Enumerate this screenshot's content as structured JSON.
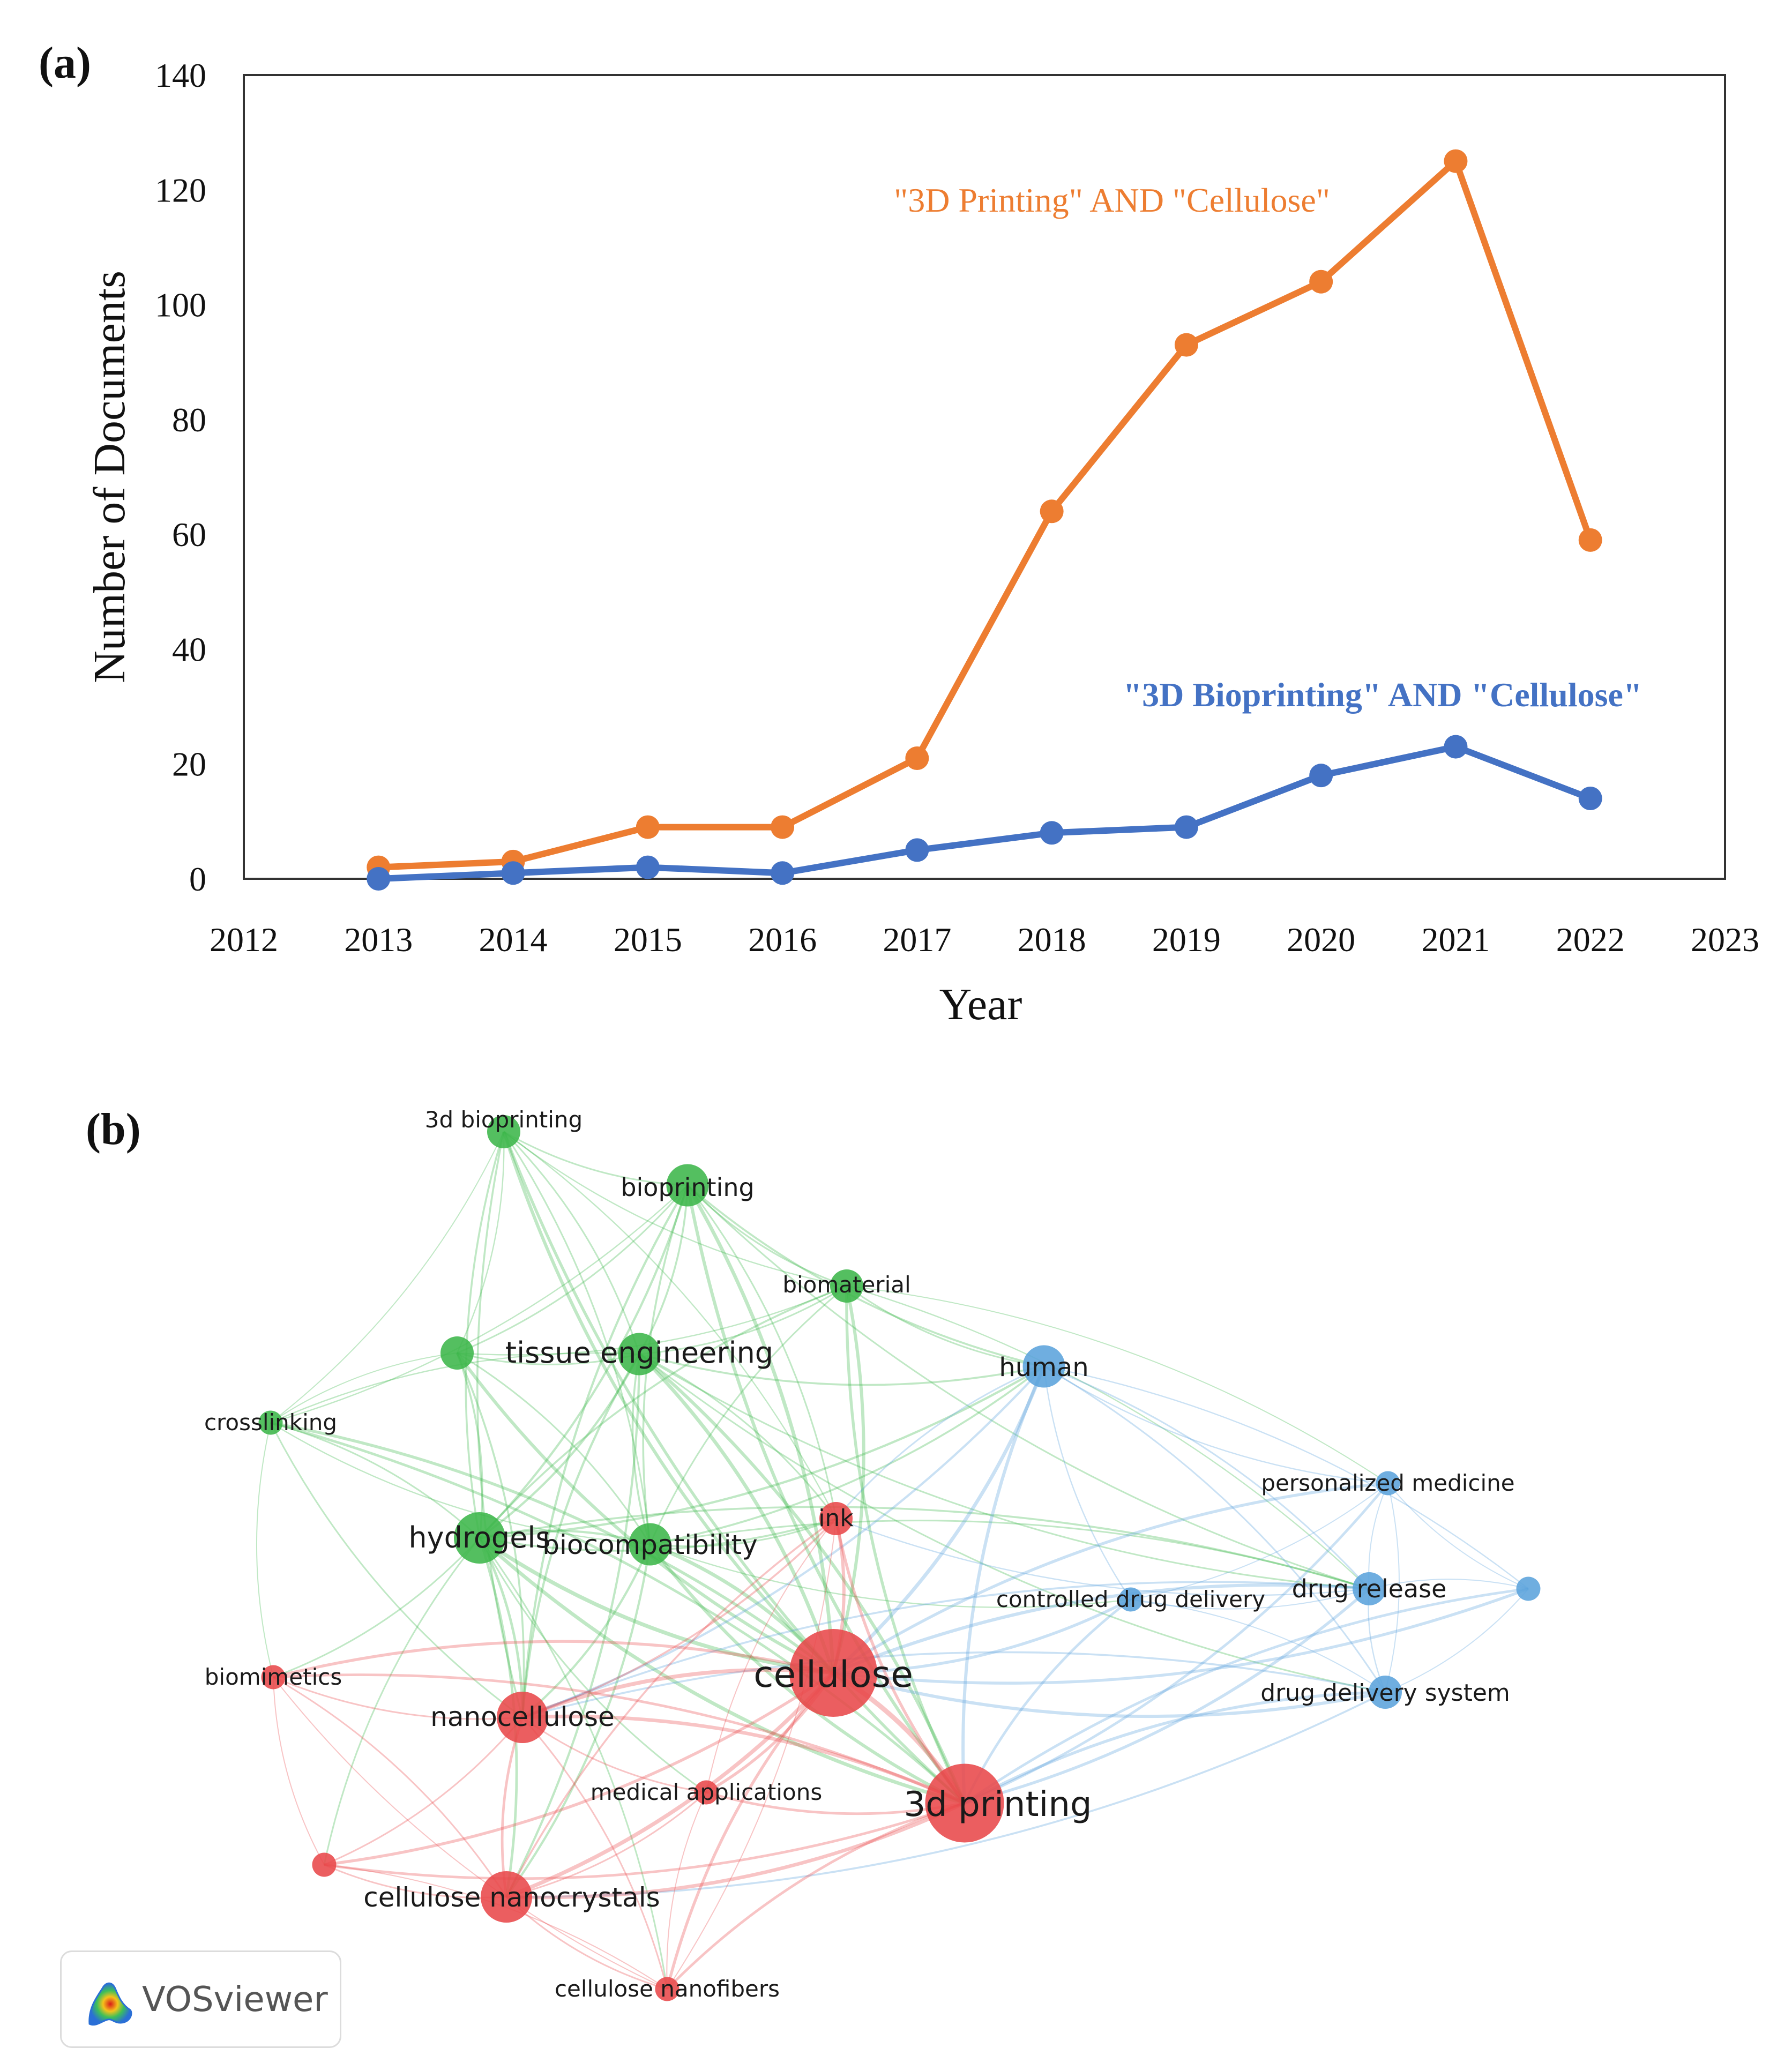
{
  "panel_a_label": "(a)",
  "panel_b_label": "(b)",
  "chart_data": [
    {
      "type": "line",
      "title": "",
      "xlabel": "Year",
      "ylabel": "Number of Documents",
      "xlim": [
        2012,
        2023
      ],
      "ylim": [
        0,
        140
      ],
      "xticks": [
        2012,
        2013,
        2014,
        2015,
        2016,
        2017,
        2018,
        2019,
        2020,
        2021,
        2022,
        2023
      ],
      "yticks": [
        0,
        20,
        40,
        60,
        80,
        100,
        120,
        140
      ],
      "x": [
        2013,
        2014,
        2015,
        2016,
        2017,
        2018,
        2019,
        2020,
        2021,
        2022
      ],
      "series": [
        {
          "name": "\"3D Printing\" AND \"Cellulose\"",
          "color": "#ED7D31",
          "values": [
            2,
            3,
            9,
            9,
            21,
            64,
            93,
            104,
            125,
            59
          ]
        },
        {
          "name": "\"3D Bioprinting\" AND \"Cellulose\"",
          "color": "#4472C4",
          "values": [
            0,
            1,
            2,
            1,
            5,
            8,
            9,
            18,
            23,
            14
          ]
        }
      ],
      "annotations": [
        {
          "text": "\"3D Printing\" AND \"Cellulose\"",
          "series": 0
        },
        {
          "text": "\"3D Bioprinting\" AND \"Cellulose\"",
          "series": 1
        }
      ]
    },
    {
      "type": "network",
      "title": "",
      "clusters": {
        "red": "#E8484A",
        "green": "#3CB64A",
        "blue": "#5BA3DC"
      },
      "nodes": [
        {
          "id": "3d bioprinting",
          "label": "3d bioprinting",
          "cluster": "green",
          "weight": 2
        },
        {
          "id": "bioprinting",
          "label": "bioprinting",
          "cluster": "green",
          "weight": 3
        },
        {
          "id": "biomaterial",
          "label": "biomaterial",
          "cluster": "green",
          "weight": 2
        },
        {
          "id": "green-unlabeled",
          "label": "",
          "cluster": "green",
          "weight": 2
        },
        {
          "id": "tissue engineering",
          "label": "tissue engineering",
          "cluster": "green",
          "weight": 3
        },
        {
          "id": "crosslinking",
          "label": "crosslinking",
          "cluster": "green",
          "weight": 1
        },
        {
          "id": "hydrogels",
          "label": "hydrogels",
          "cluster": "green",
          "weight": 4
        },
        {
          "id": "biocompatibility",
          "label": "biocompatibility",
          "cluster": "green",
          "weight": 3
        },
        {
          "id": "human",
          "label": "human",
          "cluster": "blue",
          "weight": 3
        },
        {
          "id": "personalized medicine",
          "label": "personalized medicine",
          "cluster": "blue",
          "weight": 1
        },
        {
          "id": "controlled drug delivery",
          "label": "controlled drug delivery",
          "cluster": "blue",
          "weight": 1
        },
        {
          "id": "drug release",
          "label": "drug release",
          "cluster": "blue",
          "weight": 2
        },
        {
          "id": "drug delivery system",
          "label": "drug delivery system",
          "cluster": "blue",
          "weight": 2
        },
        {
          "id": "blue-unlabeled",
          "label": "",
          "cluster": "blue",
          "weight": 1
        },
        {
          "id": "ink",
          "label": "ink",
          "cluster": "red",
          "weight": 2
        },
        {
          "id": "cellulose",
          "label": "cellulose",
          "cluster": "red",
          "weight": 8
        },
        {
          "id": "biomimetics",
          "label": "biomimetics",
          "cluster": "red",
          "weight": 1
        },
        {
          "id": "nanocellulose",
          "label": "nanocellulose",
          "cluster": "red",
          "weight": 4
        },
        {
          "id": "medical applications",
          "label": "medical applications",
          "cluster": "red",
          "weight": 1
        },
        {
          "id": "3d printing",
          "label": "3d printing",
          "cluster": "red",
          "weight": 7
        },
        {
          "id": "red-unlabeled",
          "label": "",
          "cluster": "red",
          "weight": 1
        },
        {
          "id": "cellulose nanocrystals",
          "label": "cellulose nanocrystals",
          "cluster": "red",
          "weight": 4
        },
        {
          "id": "cellulose nanofibers",
          "label": "cellulose nanofibers",
          "cluster": "red",
          "weight": 1
        }
      ],
      "edges": [
        [
          "3d bioprinting",
          "bioprinting"
        ],
        [
          "3d bioprinting",
          "tissue engineering"
        ],
        [
          "3d bioprinting",
          "hydrogels"
        ],
        [
          "3d bioprinting",
          "biocompatibility"
        ],
        [
          "3d bioprinting",
          "cellulose"
        ],
        [
          "3d bioprinting",
          "green-unlabeled"
        ],
        [
          "3d bioprinting",
          "biomaterial"
        ],
        [
          "3d bioprinting",
          "crosslinking"
        ],
        [
          "3d bioprinting",
          "nanocellulose"
        ],
        [
          "3d bioprinting",
          "ink"
        ],
        [
          "3d bioprinting",
          "3d printing"
        ],
        [
          "bioprinting",
          "tissue engineering"
        ],
        [
          "bioprinting",
          "biomaterial"
        ],
        [
          "bioprinting",
          "hydrogels"
        ],
        [
          "bioprinting",
          "biocompatibility"
        ],
        [
          "bioprinting",
          "cellulose"
        ],
        [
          "bioprinting",
          "human"
        ],
        [
          "bioprinting",
          "green-unlabeled"
        ],
        [
          "bioprinting",
          "nanocellulose"
        ],
        [
          "bioprinting",
          "ink"
        ],
        [
          "bioprinting",
          "3d printing"
        ],
        [
          "bioprinting",
          "crosslinking"
        ],
        [
          "bioprinting",
          "drug release"
        ],
        [
          "biomaterial",
          "tissue engineering"
        ],
        [
          "biomaterial",
          "human"
        ],
        [
          "biomaterial",
          "cellulose"
        ],
        [
          "biomaterial",
          "hydrogels"
        ],
        [
          "biomaterial",
          "green-unlabeled"
        ],
        [
          "biomaterial",
          "biocompatibility"
        ],
        [
          "biomaterial",
          "drug release"
        ],
        [
          "biomaterial",
          "3d printing"
        ],
        [
          "biomaterial",
          "personalized medicine"
        ],
        [
          "green-unlabeled",
          "tissue engineering"
        ],
        [
          "green-unlabeled",
          "hydrogels"
        ],
        [
          "green-unlabeled",
          "crosslinking"
        ],
        [
          "green-unlabeled",
          "biocompatibility"
        ],
        [
          "green-unlabeled",
          "cellulose"
        ],
        [
          "green-unlabeled",
          "nanocellulose"
        ],
        [
          "tissue engineering",
          "human"
        ],
        [
          "tissue engineering",
          "hydrogels"
        ],
        [
          "tissue engineering",
          "biocompatibility"
        ],
        [
          "tissue engineering",
          "cellulose"
        ],
        [
          "tissue engineering",
          "crosslinking"
        ],
        [
          "tissue engineering",
          "3d printing"
        ],
        [
          "tissue engineering",
          "nanocellulose"
        ],
        [
          "tissue engineering",
          "ink"
        ],
        [
          "tissue engineering",
          "drug release"
        ],
        [
          "tissue engineering",
          "cellulose nanocrystals"
        ],
        [
          "tissue engineering",
          "drug delivery system"
        ],
        [
          "crosslinking",
          "hydrogels"
        ],
        [
          "crosslinking",
          "biocompatibility"
        ],
        [
          "crosslinking",
          "cellulose"
        ],
        [
          "crosslinking",
          "nanocellulose"
        ],
        [
          "crosslinking",
          "3d printing"
        ],
        [
          "crosslinking",
          "biomimetics"
        ],
        [
          "hydrogels",
          "biocompatibility"
        ],
        [
          "hydrogels",
          "cellulose"
        ],
        [
          "hydrogels",
          "nanocellulose"
        ],
        [
          "hydrogels",
          "3d printing"
        ],
        [
          "hydrogels",
          "cellulose nanocrystals"
        ],
        [
          "hydrogels",
          "ink"
        ],
        [
          "hydrogels",
          "biomimetics"
        ],
        [
          "hydrogels",
          "red-unlabeled"
        ],
        [
          "hydrogels",
          "cellulose nanofibers"
        ],
        [
          "hydrogels",
          "human"
        ],
        [
          "hydrogels",
          "drug release"
        ],
        [
          "hydrogels",
          "medical applications"
        ],
        [
          "biocompatibility",
          "cellulose"
        ],
        [
          "biocompatibility",
          "3d printing"
        ],
        [
          "biocompatibility",
          "nanocellulose"
        ],
        [
          "biocompatibility",
          "human"
        ],
        [
          "biocompatibility",
          "drug release"
        ],
        [
          "biocompatibility",
          "ink"
        ],
        [
          "biocompatibility",
          "cellulose nanocrystals"
        ],
        [
          "biocompatibility",
          "controlled drug delivery"
        ],
        [
          "human",
          "cellulose"
        ],
        [
          "human",
          "3d printing"
        ],
        [
          "human",
          "drug release"
        ],
        [
          "human",
          "personalized medicine"
        ],
        [
          "human",
          "drug delivery system"
        ],
        [
          "human",
          "controlled drug delivery"
        ],
        [
          "human",
          "blue-unlabeled"
        ],
        [
          "human",
          "ink"
        ],
        [
          "human",
          "nanocellulose"
        ],
        [
          "personalized medicine",
          "drug release"
        ],
        [
          "personalized medicine",
          "drug delivery system"
        ],
        [
          "personalized medicine",
          "blue-unlabeled"
        ],
        [
          "personalized medicine",
          "3d printing"
        ],
        [
          "personalized medicine",
          "cellulose"
        ],
        [
          "personalized medicine",
          "controlled drug delivery"
        ],
        [
          "controlled drug delivery",
          "drug release"
        ],
        [
          "controlled drug delivery",
          "cellulose"
        ],
        [
          "controlled drug delivery",
          "3d printing"
        ],
        [
          "controlled drug delivery",
          "drug delivery system"
        ],
        [
          "drug release",
          "drug delivery system"
        ],
        [
          "drug release",
          "blue-unlabeled"
        ],
        [
          "drug release",
          "cellulose"
        ],
        [
          "drug release",
          "3d printing"
        ],
        [
          "drug release",
          "nanocellulose"
        ],
        [
          "drug release",
          "ink"
        ],
        [
          "drug delivery system",
          "blue-unlabeled"
        ],
        [
          "drug delivery system",
          "cellulose"
        ],
        [
          "drug delivery system",
          "3d printing"
        ],
        [
          "drug delivery system",
          "cellulose nanocrystals"
        ],
        [
          "drug delivery system",
          "nanocellulose"
        ],
        [
          "blue-unlabeled",
          "cellulose"
        ],
        [
          "blue-unlabeled",
          "3d printing"
        ],
        [
          "ink",
          "cellulose"
        ],
        [
          "ink",
          "3d printing"
        ],
        [
          "ink",
          "nanocellulose"
        ],
        [
          "ink",
          "cellulose nanocrystals"
        ],
        [
          "ink",
          "cellulose nanofibers"
        ],
        [
          "ink",
          "medical applications"
        ],
        [
          "cellulose",
          "3d printing"
        ],
        [
          "cellulose",
          "nanocellulose"
        ],
        [
          "cellulose",
          "cellulose nanocrystals"
        ],
        [
          "cellulose",
          "cellulose nanofibers"
        ],
        [
          "cellulose",
          "medical applications"
        ],
        [
          "cellulose",
          "biomimetics"
        ],
        [
          "cellulose",
          "red-unlabeled"
        ],
        [
          "biomimetics",
          "nanocellulose"
        ],
        [
          "biomimetics",
          "cellulose nanocrystals"
        ],
        [
          "biomimetics",
          "red-unlabeled"
        ],
        [
          "biomimetics",
          "3d printing"
        ],
        [
          "biomimetics",
          "cellulose nanofibers"
        ],
        [
          "nanocellulose",
          "3d printing"
        ],
        [
          "nanocellulose",
          "cellulose nanocrystals"
        ],
        [
          "nanocellulose",
          "cellulose nanofibers"
        ],
        [
          "nanocellulose",
          "medical applications"
        ],
        [
          "nanocellulose",
          "red-unlabeled"
        ],
        [
          "medical applications",
          "3d printing"
        ],
        [
          "medical applications",
          "cellulose nanocrystals"
        ],
        [
          "medical applications",
          "cellulose nanofibers"
        ],
        [
          "3d printing",
          "cellulose nanocrystals"
        ],
        [
          "3d printing",
          "cellulose nanofibers"
        ],
        [
          "3d printing",
          "red-unlabeled"
        ],
        [
          "red-unlabeled",
          "cellulose nanocrystals"
        ],
        [
          "red-unlabeled",
          "cellulose nanofibers"
        ],
        [
          "cellulose nanocrystals",
          "cellulose nanofibers"
        ]
      ]
    }
  ],
  "watermark": {
    "text": "VOSviewer"
  }
}
